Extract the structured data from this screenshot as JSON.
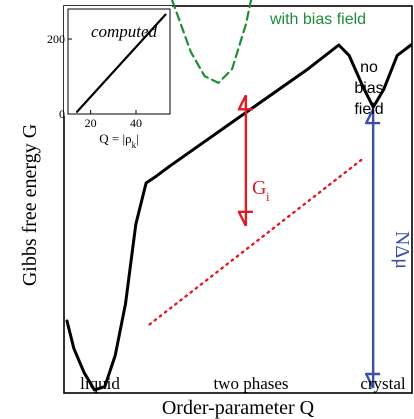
{
  "chart_data": [
    {
      "type": "line",
      "role": "main",
      "ylabel": "Gibbs free energy G",
      "xlabel": "Order-parameter Q",
      "x_tick_labels": [
        "liquid",
        "two phases",
        "crystal"
      ],
      "grid": false,
      "series": [
        {
          "name": "no bias field",
          "label_lines": [
            "no",
            "bias",
            "field"
          ],
          "color": "#000000",
          "style": "solid",
          "points": [
            [
              0.0,
              0.2
            ],
            [
              0.02,
              0.12
            ],
            [
              0.05,
              0.05
            ],
            [
              0.08,
              0.0
            ],
            [
              0.11,
              0.01
            ],
            [
              0.14,
              0.1
            ],
            [
              0.17,
              0.25
            ],
            [
              0.2,
              0.48
            ],
            [
              0.23,
              0.6
            ],
            [
              0.26,
              0.62
            ],
            [
              0.3,
              0.65
            ],
            [
              0.5,
              0.79
            ],
            [
              0.7,
              0.93
            ],
            [
              0.79,
              1.0
            ],
            [
              0.82,
              0.97
            ],
            [
              0.86,
              0.88
            ],
            [
              0.89,
              0.82
            ],
            [
              0.92,
              0.87
            ],
            [
              0.96,
              0.97
            ],
            [
              1.0,
              1.0
            ]
          ]
        },
        {
          "name": "with bias field",
          "color": "#1e8c3a",
          "style": "dashed",
          "points": [
            [
              0.28,
              1.2
            ],
            [
              0.32,
              1.09
            ],
            [
              0.36,
              0.98
            ],
            [
              0.4,
              0.91
            ],
            [
              0.44,
              0.89
            ],
            [
              0.48,
              0.93
            ],
            [
              0.52,
              1.06
            ],
            [
              0.55,
              1.2
            ]
          ]
        },
        {
          "name": "",
          "color": "#e01b24",
          "style": "dotted",
          "points": [
            [
              0.24,
              0.19
            ],
            [
              0.86,
              0.67
            ]
          ]
        }
      ],
      "annotations": [
        {
          "label": "G",
          "subscript": "i",
          "color": "#e01b24",
          "arrow": "double",
          "from": [
            0.52,
            0.86
          ],
          "to": [
            0.52,
            0.47
          ]
        },
        {
          "label": "NΔμ",
          "color": "#3a4fa8",
          "arrow": "double",
          "from": [
            0.89,
            0.82
          ],
          "to": [
            0.89,
            0.0
          ]
        }
      ]
    },
    {
      "type": "line",
      "role": "inset",
      "title": "computed",
      "xlabel": "Q = |ρ",
      "xlabel_subscript": "k",
      "xlabel_suffix": "|",
      "xlim": [
        10,
        55
      ],
      "ylim": [
        0,
        280
      ],
      "xticks": [
        20,
        40
      ],
      "yticks": [
        0,
        200
      ],
      "series": [
        {
          "name": "",
          "color": "#000000",
          "points": [
            [
              14,
              6
            ],
            [
              53,
              265
            ]
          ]
        }
      ]
    }
  ]
}
